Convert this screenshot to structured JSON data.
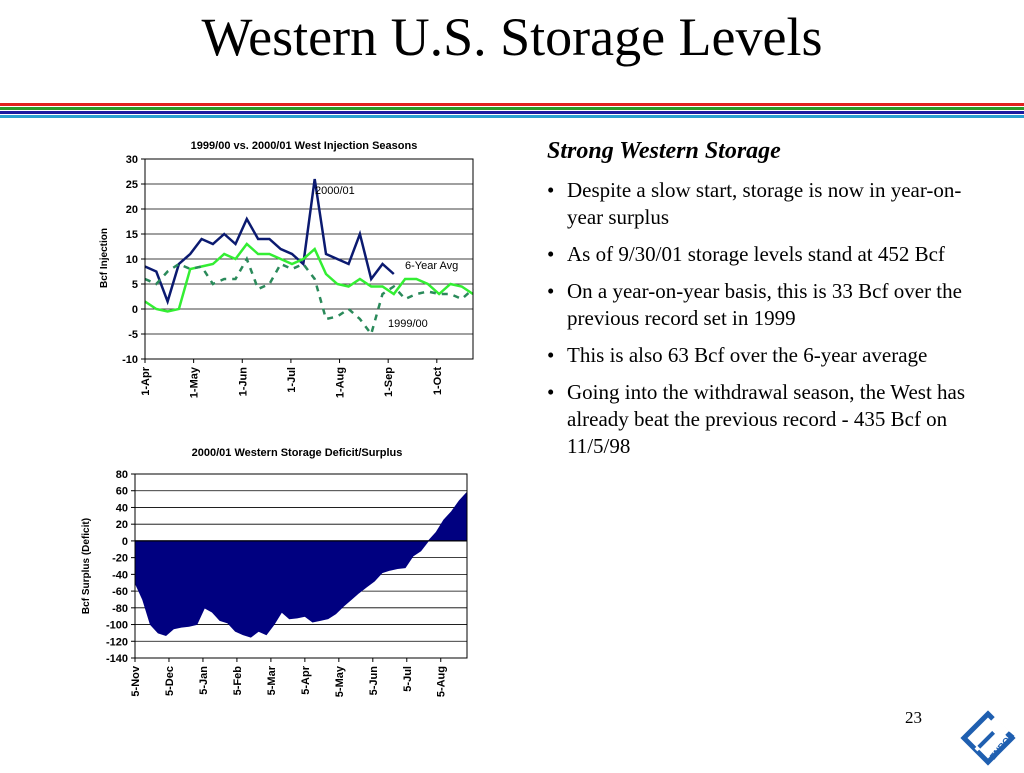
{
  "slide": {
    "title": "Western U.S. Storage Levels",
    "page_number": "23",
    "rule_colors": [
      "#e02020",
      "#2a9a2a",
      "#1a1aa0",
      "#2aa0d0"
    ],
    "logo": {
      "icon": "enron-logo-icon",
      "text": "ENRON",
      "color": "#1f5fb0"
    }
  },
  "panel": {
    "heading": "Strong Western Storage",
    "bullets": [
      "Despite a slow start, storage is now in year-on-year surplus",
      "As of 9/30/01 storage levels stand at 452 Bcf",
      "On a year-on-year basis, this is 33 Bcf over the previous record set in 1999",
      "This is also 63 Bcf over the 6-year average",
      "Going into the withdrawal season, the West has already beat the previous record - 435 Bcf on 11/5/98"
    ],
    "bullet_glyph": "•"
  },
  "chart_data": [
    {
      "type": "line",
      "title": "1999/00 vs. 2000/01 West Injection Seasons",
      "ylabel": "Bcf Injection",
      "xlabel": "",
      "ylim": [
        -10,
        30
      ],
      "yticks": [
        -10,
        -5,
        0,
        5,
        10,
        15,
        20,
        25,
        30
      ],
      "xtick_labels": [
        "1-Apr",
        "1-May",
        "1-Jun",
        "1-Jul",
        "1-Aug",
        "1-Sep",
        "1-Oct"
      ],
      "xtick_index": [
        0,
        4.3,
        8.6,
        12.9,
        17.2,
        21.5,
        25.8
      ],
      "x_count": 30,
      "grid": true,
      "series": [
        {
          "name": "2000/01",
          "color": "#0b1a70",
          "style": "solid",
          "values": [
            8.5,
            7.5,
            1.5,
            9,
            11,
            14,
            13,
            15,
            13,
            18,
            14,
            14,
            12,
            11,
            9,
            26,
            11,
            10,
            9,
            15,
            6,
            9,
            7,
            null,
            null,
            null,
            null,
            null,
            null,
            null
          ]
        },
        {
          "name": "6-Year Avg",
          "color": "#33ee33",
          "style": "solid",
          "values": [
            1.5,
            0,
            -0.5,
            0,
            8,
            8.5,
            9,
            11,
            10,
            13,
            11,
            11,
            10,
            9,
            10,
            12,
            7,
            5,
            4.5,
            6,
            4.5,
            4.5,
            3,
            6,
            6,
            5,
            3,
            5,
            4.5,
            3
          ]
        },
        {
          "name": "1999/00",
          "color": "#2a8a5a",
          "style": "dashed",
          "values": [
            6,
            5,
            7.5,
            9,
            8,
            8.5,
            5,
            6,
            6,
            10,
            4,
            5,
            9,
            8,
            9,
            6,
            -2,
            -1.5,
            0,
            -2,
            -5,
            3,
            4.5,
            2,
            3,
            3.5,
            3,
            3,
            2,
            4
          ]
        }
      ],
      "annotations": [
        "2000/01",
        "6-Year Avg",
        "1999/00"
      ]
    },
    {
      "type": "area",
      "title": "2000/01 Western Storage Deficit/Surplus",
      "ylabel": "Bcf Surplus (Deficit)",
      "xlabel": "",
      "ylim": [
        -140,
        80
      ],
      "yticks": [
        -140,
        -120,
        -100,
        -80,
        -60,
        -40,
        -20,
        0,
        20,
        40,
        60,
        80
      ],
      "xtick_labels": [
        "5-Nov",
        "5-Dec",
        "5-Jan",
        "5-Feb",
        "5-Mar",
        "5-Apr",
        "5-May",
        "5-Jun",
        "5-Jul",
        "5-Aug"
      ],
      "xtick_index": [
        0,
        4.4,
        8.8,
        13.2,
        17.6,
        22,
        26.4,
        30.8,
        35.2,
        39.6
      ],
      "x_count": 44,
      "grid": true,
      "color": "#000080",
      "values": [
        -50,
        -70,
        -100,
        -110,
        -113,
        -105,
        -103,
        -102,
        -100,
        -80,
        -85,
        -95,
        -98,
        -108,
        -112,
        -115,
        -108,
        -112,
        -100,
        -85,
        -93,
        -92,
        -90,
        -97,
        -95,
        -93,
        -87,
        -78,
        -70,
        -62,
        -55,
        -48,
        -38,
        -35,
        -33,
        -32,
        -18,
        -12,
        0,
        10,
        25,
        35,
        48,
        58
      ]
    }
  ]
}
